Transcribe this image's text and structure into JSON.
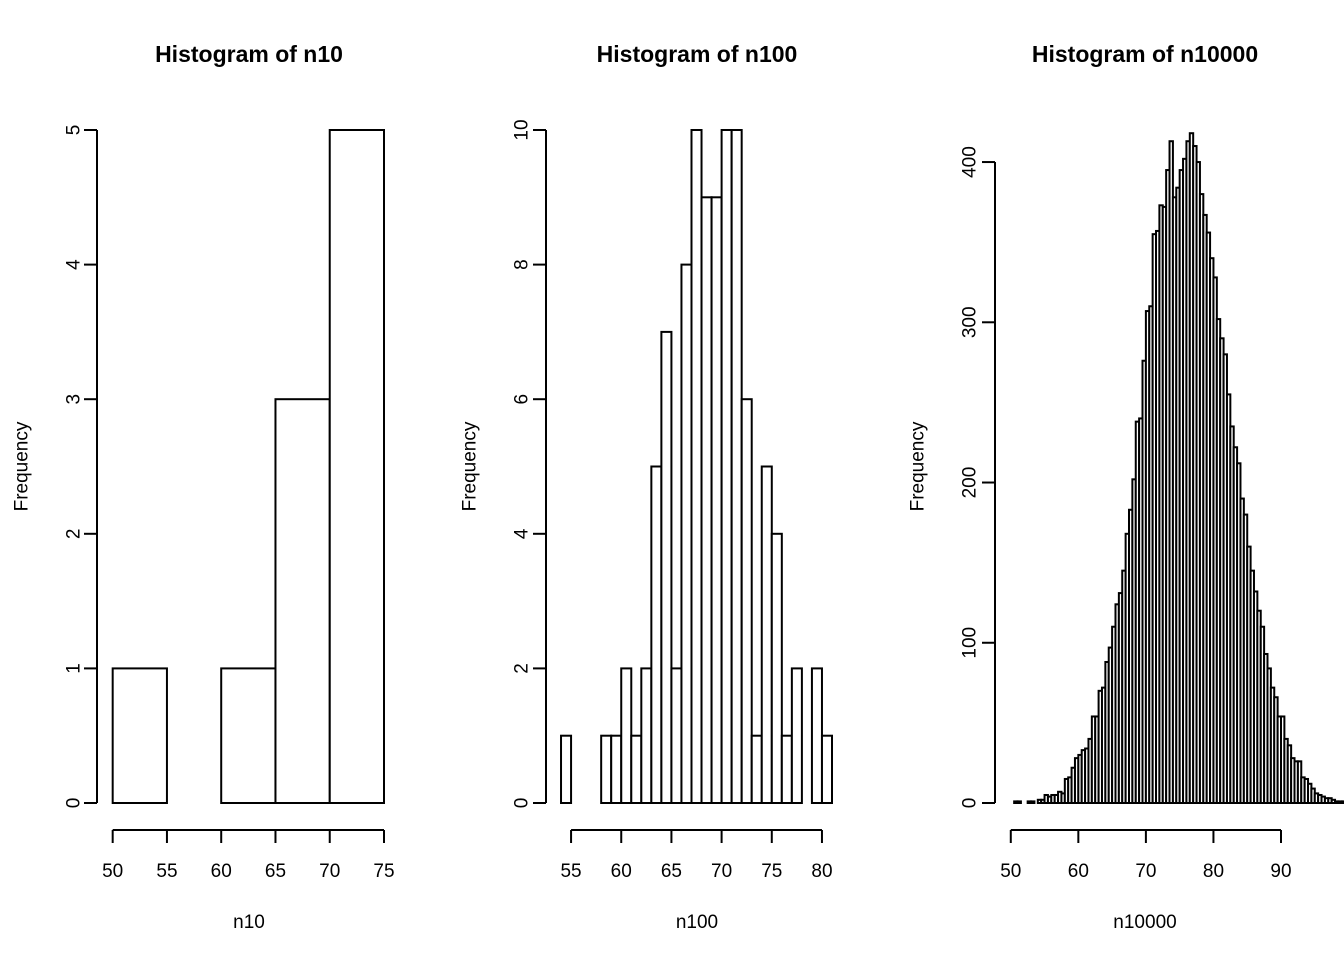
{
  "colors": {
    "background": "#ffffff",
    "bar_fill": "#ffffff",
    "bar_stroke": "#000000"
  },
  "chart_data": [
    {
      "type": "bar",
      "title": "Histogram of n10",
      "xlabel": "n10",
      "ylabel": "Frequency",
      "breaks": [
        50,
        55,
        60,
        65,
        70,
        75
      ],
      "values": [
        1,
        0,
        1,
        3,
        5
      ],
      "xticks": [
        50,
        55,
        60,
        65,
        70,
        75
      ],
      "yticks": [
        0,
        1,
        2,
        3,
        4,
        5
      ],
      "xlim": [
        49.2,
        75
      ],
      "ylim": [
        0,
        5
      ]
    },
    {
      "type": "bar",
      "title": "Histogram of n100",
      "xlabel": "n100",
      "ylabel": "Frequency",
      "breaks": [
        54,
        55,
        56,
        57,
        58,
        59,
        60,
        61,
        62,
        63,
        64,
        65,
        66,
        67,
        68,
        69,
        70,
        71,
        72,
        73,
        74,
        75,
        76,
        77,
        78,
        79,
        80,
        81
      ],
      "values": [
        1,
        0,
        0,
        0,
        1,
        1,
        2,
        1,
        2,
        5,
        7,
        2,
        8,
        10,
        9,
        9,
        10,
        10,
        6,
        1,
        5,
        4,
        1,
        2,
        0,
        2,
        1
      ],
      "xticks": [
        55,
        60,
        65,
        70,
        75,
        80
      ],
      "yticks": [
        0,
        2,
        4,
        6,
        8,
        10
      ],
      "xlim": [
        53.2,
        81
      ],
      "ylim": [
        0,
        10
      ]
    },
    {
      "type": "bar",
      "title": "Histogram of n10000",
      "xlabel": "n10000",
      "ylabel": "Frequency",
      "breaks_start": 50,
      "bin_width": 0.5,
      "values": [
        0,
        1,
        1,
        0,
        0,
        1,
        1,
        0,
        2,
        2,
        5,
        4,
        5,
        5,
        7,
        6,
        15,
        16,
        22,
        28,
        30,
        33,
        34,
        40,
        54,
        54,
        70,
        72,
        88,
        97,
        110,
        124,
        131,
        145,
        168,
        183,
        202,
        238,
        240,
        276,
        307,
        310,
        355,
        357,
        373,
        372,
        395,
        413,
        378,
        384,
        395,
        402,
        413,
        418,
        410,
        400,
        380,
        367,
        356,
        340,
        328,
        302,
        290,
        280,
        255,
        235,
        222,
        212,
        190,
        180,
        160,
        145,
        132,
        120,
        110,
        93,
        84,
        72,
        66,
        54,
        54,
        40,
        36,
        28,
        26,
        26,
        16,
        15,
        12,
        9,
        6,
        5,
        4,
        3,
        3,
        2,
        1,
        1,
        1,
        0,
        0,
        1,
        0,
        1,
        0,
        0,
        0,
        1,
        0,
        0
      ],
      "xticks": [
        50,
        60,
        70,
        80,
        90
      ],
      "yticks": [
        0,
        100,
        200,
        300,
        400
      ],
      "xlim": [
        48.7,
        90
      ],
      "ylim": [
        0,
        420
      ]
    }
  ]
}
